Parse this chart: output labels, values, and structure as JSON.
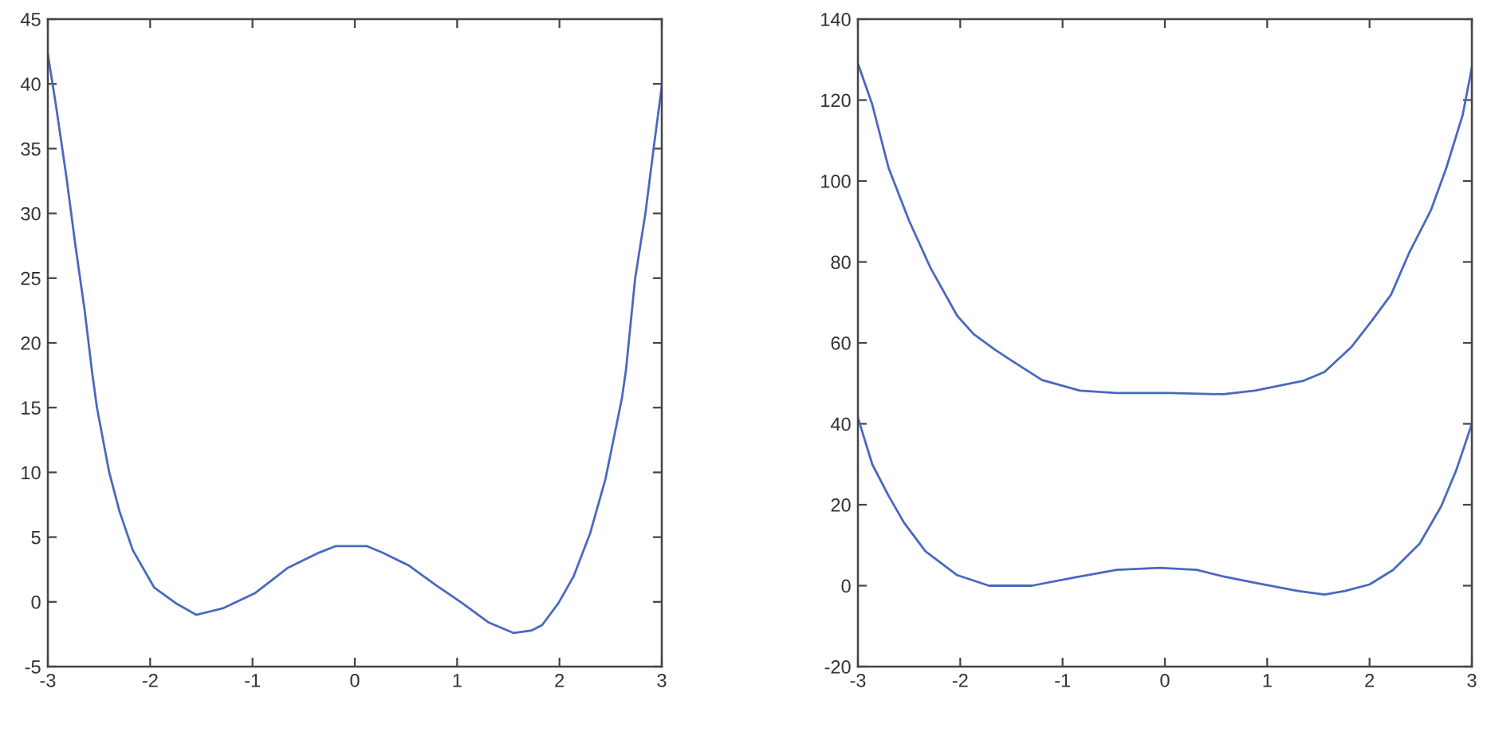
{
  "chart_data": [
    {
      "type": "line",
      "xlim": [
        -3,
        3
      ],
      "ylim": [
        -5,
        45
      ],
      "xticks": [
        -3,
        -2,
        -1,
        0,
        1,
        2,
        3
      ],
      "yticks": [
        -5,
        0,
        5,
        10,
        15,
        20,
        25,
        30,
        35,
        40,
        45
      ],
      "line_style": "solid",
      "series": [
        {
          "color": "#4a68c0",
          "x": [
            -3,
            -2.92,
            -2.82,
            -2.73,
            -2.64,
            -2.57,
            -2.52,
            -2.4,
            -2.3,
            -2.17,
            -1.96,
            -1.75,
            -1.55,
            -1.29,
            -0.97,
            -0.66,
            -0.35,
            -0.19,
            0.12,
            0.27,
            0.53,
            0.79,
            1.05,
            1.31,
            1.55,
            1.73,
            1.83,
            1.99,
            2.14,
            2.3,
            2.45,
            2.61,
            2.65,
            2.74,
            2.84,
            2.92,
            3
          ],
          "values": [
            42.3,
            38.3,
            32.9,
            27.5,
            22.5,
            17.9,
            15,
            10,
            7,
            4,
            1.1,
            -0.1,
            -1,
            -0.5,
            0.7,
            2.6,
            3.8,
            4.3,
            4.3,
            3.8,
            2.8,
            1.3,
            -0.1,
            -1.6,
            -2.4,
            -2.2,
            -1.8,
            -0.1,
            2,
            5.3,
            9.5,
            15.7,
            17.9,
            25,
            30,
            35,
            39.8
          ]
        }
      ]
    },
    {
      "type": "line",
      "xlim": [
        -3,
        3
      ],
      "ylim": [
        -20,
        140
      ],
      "xticks": [
        -3,
        -2,
        -1,
        0,
        1,
        2,
        3
      ],
      "yticks": [
        -20,
        0,
        20,
        40,
        60,
        80,
        100,
        120,
        140
      ],
      "line_style": "solid",
      "series": [
        {
          "color": "#4a68c0",
          "x": [
            -3,
            -2.86,
            -2.7,
            -2.5,
            -2.29,
            -2.03,
            -1.87,
            -1.66,
            -1.46,
            -1.2,
            -0.83,
            -0.47,
            0.05,
            0.57,
            0.88,
            1.35,
            1.56,
            1.61,
            1.82,
            2.02,
            2.21,
            2.39,
            2.6,
            2.75,
            2.91,
            3
          ],
          "values": [
            129,
            118.9,
            103.2,
            90.2,
            78.5,
            66.7,
            62.2,
            58.3,
            55,
            50.8,
            48.2,
            47.6,
            47.6,
            47.3,
            48.2,
            50.6,
            52.8,
            54,
            58.9,
            65.4,
            71.9,
            82.4,
            92.8,
            103.2,
            116.3,
            128
          ]
        },
        {
          "color": "#4a68c0",
          "x": [
            -3,
            -2.86,
            -2.7,
            -2.55,
            -2.34,
            -2.03,
            -1.72,
            -1.3,
            -0.89,
            -0.47,
            -0.05,
            0.31,
            0.57,
            0.88,
            1.3,
            1.56,
            1.76,
            2,
            2.23,
            2.49,
            2.7,
            2.85,
            3
          ],
          "values": [
            41.5,
            30,
            22.2,
            15.6,
            8.5,
            2.6,
            0,
            0,
            2,
            3.9,
            4.4,
            3.9,
            2.3,
            0.7,
            -1.3,
            -2.2,
            -1.3,
            0.3,
            3.9,
            10.4,
            19.6,
            28.7,
            40
          ]
        }
      ]
    }
  ]
}
